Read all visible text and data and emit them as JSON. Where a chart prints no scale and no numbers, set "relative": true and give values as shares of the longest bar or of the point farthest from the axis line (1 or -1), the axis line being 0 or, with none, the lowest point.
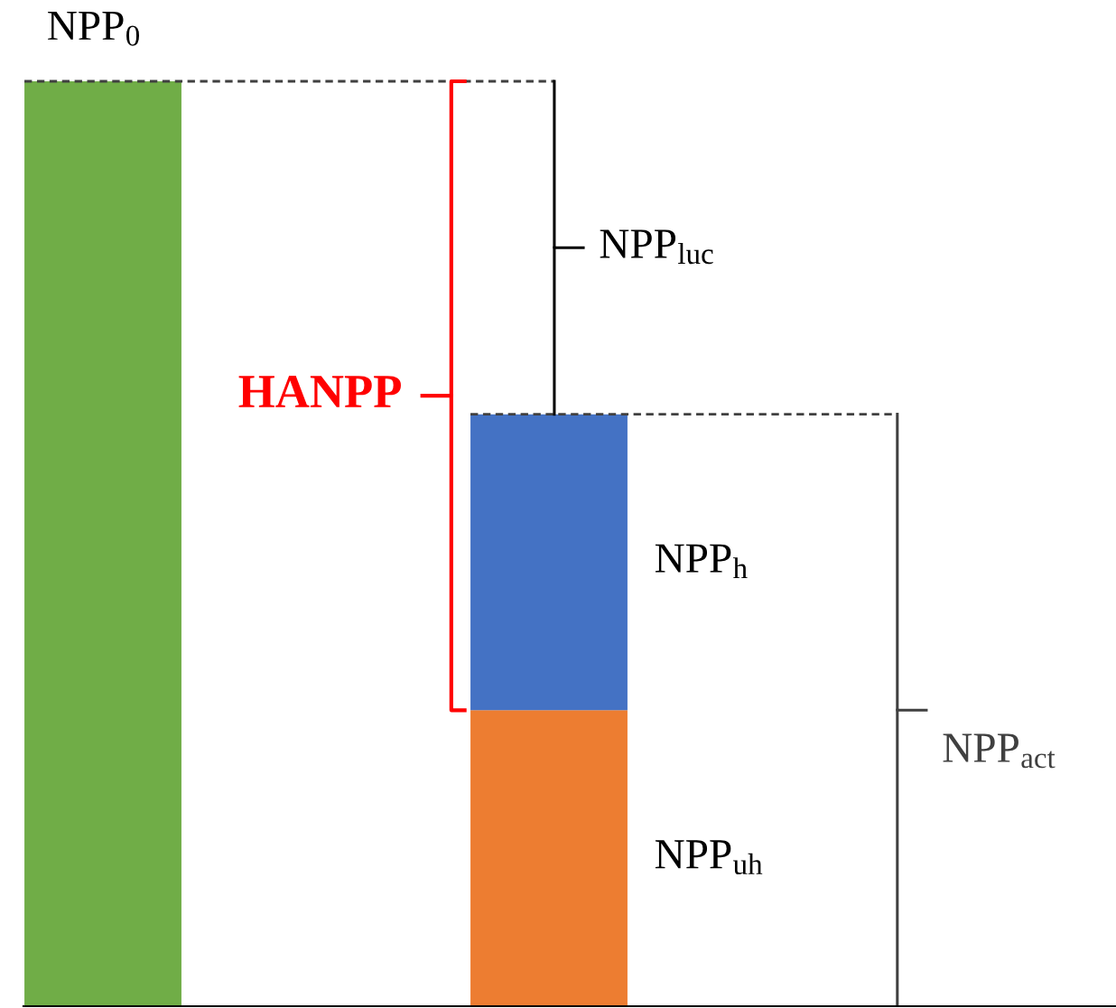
{
  "chart_data": {
    "type": "bar",
    "relative": true,
    "stacked": true,
    "categories": [
      null,
      null
    ],
    "series": [
      {
        "name": "NPP$_{0}$",
        "color": "#70ad47",
        "values": [
          1,
          null
        ]
      },
      {
        "name": "NPP$_{uh}$",
        "color": "#ed7d31",
        "values": [
          null,
          0.32
        ]
      },
      {
        "name": "NPP$_{h}$",
        "color": "#4472c4",
        "values": [
          null,
          0.32
        ]
      }
    ],
    "annotations": [
      "HANPP",
      "NPP$_{luc}$",
      "NPP$_{act}$"
    ],
    "ref_lines": [
      {
        "axis": "y",
        "value": 1,
        "color": "#404040",
        "line_style": "dashed"
      },
      {
        "axis": "y",
        "value": 0.64,
        "color": "#404040",
        "line_style": "dashed"
      }
    ],
    "legend": false
  }
}
